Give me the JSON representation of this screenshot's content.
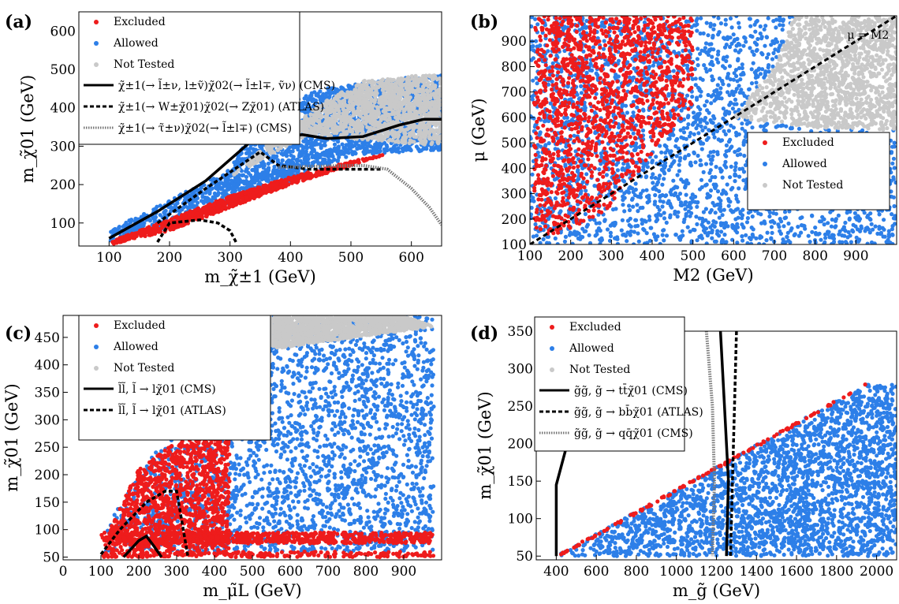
{
  "colors": {
    "excluded": "#ee1c1c",
    "allowed": "#2d7fe8",
    "not_tested": "#c9c9c9"
  },
  "chart_data": [
    {
      "panel": "(a)",
      "type": "scatter",
      "xlabel": "m_χ̃±1 (GeV)",
      "ylabel": "m_χ̃01 (GeV)",
      "xlim": [
        50,
        650
      ],
      "ylim": [
        40,
        650
      ],
      "xticks": [
        100,
        200,
        300,
        400,
        500,
        600
      ],
      "yticks": [
        100,
        200,
        300,
        400,
        500,
        600
      ],
      "legend": {
        "position": "top-left",
        "entries": [
          "Excluded",
          "Allowed",
          "Not Tested"
        ],
        "lines": [
          "χ̃±1(→ l̃±ν, l±ṽ)χ̃02(→ l̃±l∓, ṽν) (CMS)",
          "χ̃±1(→ W±χ̃01)χ̃02(→ Zχ̃01) (ATLAS)",
          "χ̃±1(→ τ̃±ν)χ̃02(→ l̃±l∓) (CMS)"
        ]
      },
      "regions": {
        "not_tested": [
          [
            300,
            220
          ],
          [
            380,
            330
          ],
          [
            460,
            420
          ],
          [
            520,
            470
          ],
          [
            650,
            490
          ],
          [
            650,
            300
          ],
          [
            430,
            330
          ]
        ],
        "allowed": [
          [
            100,
            80
          ],
          [
            200,
            160
          ],
          [
            300,
            240
          ],
          [
            350,
            380
          ],
          [
            450,
            450
          ],
          [
            650,
            490
          ],
          [
            650,
            290
          ],
          [
            500,
            275
          ],
          [
            400,
            210
          ],
          [
            300,
            150
          ],
          [
            200,
            90
          ],
          [
            100,
            50
          ]
        ],
        "excluded": [
          [
            100,
            50
          ],
          [
            200,
            110
          ],
          [
            300,
            170
          ],
          [
            400,
            220
          ],
          [
            500,
            260
          ],
          [
            560,
            280
          ],
          [
            540,
            270
          ],
          [
            400,
            200
          ],
          [
            300,
            140
          ],
          [
            200,
            80
          ],
          [
            105,
            45
          ]
        ]
      },
      "curves": [
        {
          "name": "χ̃±1(→ l̃±ν, l±ṽ)χ̃02(→ l̃±l∓, ṽν) (CMS)",
          "style": "solid",
          "x": [
            100,
            180,
            260,
            340,
            420,
            460,
            520,
            580,
            620,
            650
          ],
          "y": [
            60,
            130,
            210,
            320,
            330,
            320,
            325,
            355,
            370,
            370
          ]
        },
        {
          "name": "χ̃±1(→ W±χ̃01)χ̃02(→ Zχ̃01) (ATLAS)",
          "style": "dashed",
          "x": [
            180,
            260,
            350,
            380,
            430,
            500,
            550
          ],
          "y": [
            100,
            190,
            285,
            250,
            240,
            240,
            240
          ]
        },
        {
          "name": "χ̃±1(→ W±χ̃01)χ̃02(→ Zχ̃01) (ATLAS) low branch",
          "style": "dashed",
          "x": [
            180,
            200,
            250,
            280,
            300,
            310
          ],
          "y": [
            50,
            100,
            108,
            100,
            80,
            50
          ]
        },
        {
          "name": "χ̃±1(→ τ̃±ν)χ̃02(→ l̃±l∓) (CMS)",
          "style": "dotted",
          "x": [
            380,
            450,
            520,
            560,
            600,
            630,
            650
          ],
          "y": [
            245,
            248,
            250,
            240,
            190,
            140,
            95
          ]
        }
      ]
    },
    {
      "panel": "(b)",
      "type": "scatter",
      "xlabel": "M2 (GeV)",
      "ylabel": "μ (GeV)",
      "xlim": [
        100,
        1000
      ],
      "ylim": [
        100,
        1000
      ],
      "xticks": [
        100,
        200,
        300,
        400,
        500,
        600,
        700,
        800,
        900
      ],
      "yticks": [
        100,
        200,
        300,
        400,
        500,
        600,
        700,
        800,
        900
      ],
      "legend": {
        "position": "center-right",
        "entries": [
          "Excluded",
          "Allowed",
          "Not Tested"
        ]
      },
      "annotation": "μ = M2",
      "regions": {
        "not_tested": [
          [
            600,
            600
          ],
          [
            700,
            800
          ],
          [
            750,
            1000
          ],
          [
            1000,
            1000
          ],
          [
            1000,
            550
          ],
          [
            800,
            560
          ]
        ],
        "allowed": [
          [
            100,
            100
          ],
          [
            1000,
            100
          ],
          [
            1000,
            550
          ],
          [
            800,
            560
          ],
          [
            600,
            600
          ],
          [
            700,
            800
          ],
          [
            750,
            1000
          ],
          [
            100,
            1000
          ]
        ],
        "excluded": [
          [
            110,
            1000
          ],
          [
            500,
            1000
          ],
          [
            500,
            650
          ],
          [
            420,
            500
          ],
          [
            300,
            250
          ],
          [
            200,
            150
          ],
          [
            130,
            130
          ],
          [
            110,
            180
          ]
        ]
      },
      "diagonal": {
        "x": [
          100,
          1000
        ],
        "y": [
          100,
          1000
        ],
        "style": "dashed"
      }
    },
    {
      "panel": "(c)",
      "type": "scatter",
      "xlabel": "m_μ̃L (GeV)",
      "ylabel": "m_χ̃01 (GeV)",
      "xlim": [
        0,
        1000
      ],
      "ylim": [
        45,
        490
      ],
      "xticks": [
        0,
        100,
        200,
        300,
        400,
        500,
        600,
        700,
        800,
        900
      ],
      "yticks": [
        50,
        100,
        150,
        200,
        250,
        300,
        350,
        400,
        450
      ],
      "legend": {
        "position": "top-left",
        "entries": [
          "Excluded",
          "Allowed",
          "Not Tested"
        ],
        "lines": [
          "l̃l̃, l̃ → lχ̃01 (CMS)",
          "l̃l̃, l̃ → lχ̃01 (ATLAS)"
        ]
      },
      "regions": {
        "not_tested": [
          [
            480,
            490
          ],
          [
            900,
            490
          ],
          [
            980,
            470
          ],
          [
            560,
            430
          ]
        ],
        "allowed": [
          [
            110,
            100
          ],
          [
            200,
            200
          ],
          [
            300,
            290
          ],
          [
            420,
            440
          ],
          [
            480,
            490
          ],
          [
            980,
            490
          ],
          [
            980,
            60
          ],
          [
            110,
            60
          ]
        ],
        "excluded": [
          [
            100,
            50
          ],
          [
            130,
            110
          ],
          [
            200,
            210
          ],
          [
            300,
            260
          ],
          [
            440,
            280
          ],
          [
            440,
            60
          ],
          [
            980,
            60
          ],
          [
            980,
            50
          ]
        ]
      },
      "excluded_band": {
        "y": [
          75,
          95
        ],
        "x": [
          100,
          980
        ]
      },
      "curves": [
        {
          "name": "l̃l̃, l̃ → lχ̃01 (CMS)",
          "style": "solid",
          "x": [
            160,
            200,
            220,
            240,
            260
          ],
          "y": [
            50,
            80,
            88,
            70,
            50
          ]
        },
        {
          "name": "l̃l̃, l̃ → lχ̃01 (ATLAS)",
          "style": "dashed",
          "x": [
            100,
            150,
            220,
            270,
            300,
            330
          ],
          "y": [
            55,
            100,
            150,
            170,
            170,
            50
          ]
        }
      ]
    },
    {
      "panel": "(d)",
      "type": "scatter",
      "xlabel": "m_g̃ (GeV)",
      "ylabel": "m_χ̃01 (GeV)",
      "xlim": [
        300,
        2100
      ],
      "ylim": [
        45,
        350
      ],
      "xticks": [
        400,
        600,
        800,
        1000,
        1200,
        1400,
        1600,
        1800,
        2000
      ],
      "yticks": [
        50,
        100,
        150,
        200,
        250,
        300,
        350
      ],
      "legend": {
        "position": "top-left",
        "entries": [
          "Excluded",
          "Allowed",
          "Not Tested"
        ],
        "lines": [
          "g̃g̃, g̃ → tt̄χ̃01 (CMS)",
          "g̃g̃, g̃ → bb̄χ̃01 (ATLAS)",
          "g̃g̃, g̃ → qq̄χ̃01 (CMS)"
        ]
      },
      "regions": {
        "allowed": [
          [
            400,
            50
          ],
          [
            1950,
            280
          ],
          [
            2100,
            280
          ],
          [
            2100,
            50
          ]
        ],
        "excluded": [
          [
            400,
            50
          ],
          [
            1950,
            280
          ],
          [
            1900,
            270
          ],
          [
            420,
            50
          ]
        ]
      },
      "curves": [
        {
          "name": "g̃g̃, g̃ → tt̄χ̃01 (CMS)",
          "style": "solid",
          "x": [
            400,
            400,
            450,
            480
          ],
          "y": [
            50,
            145,
            195,
            350
          ]
        },
        {
          "name": "g̃g̃, g̃ → tt̄χ̃01 (CMS) right",
          "style": "solid",
          "x": [
            1220,
            1240,
            1260,
            1250
          ],
          "y": [
            350,
            250,
            150,
            50
          ]
        },
        {
          "name": "g̃g̃, g̃ → bb̄χ̃01 (ATLAS)",
          "style": "dashed",
          "x": [
            1300,
            1290,
            1280,
            1270
          ],
          "y": [
            350,
            250,
            150,
            50
          ]
        },
        {
          "name": "g̃g̃, g̃ → qq̄χ̃01 (CMS)",
          "style": "dotted",
          "x": [
            1150,
            1180,
            1190,
            1180
          ],
          "y": [
            350,
            250,
            150,
            50
          ]
        }
      ]
    }
  ]
}
